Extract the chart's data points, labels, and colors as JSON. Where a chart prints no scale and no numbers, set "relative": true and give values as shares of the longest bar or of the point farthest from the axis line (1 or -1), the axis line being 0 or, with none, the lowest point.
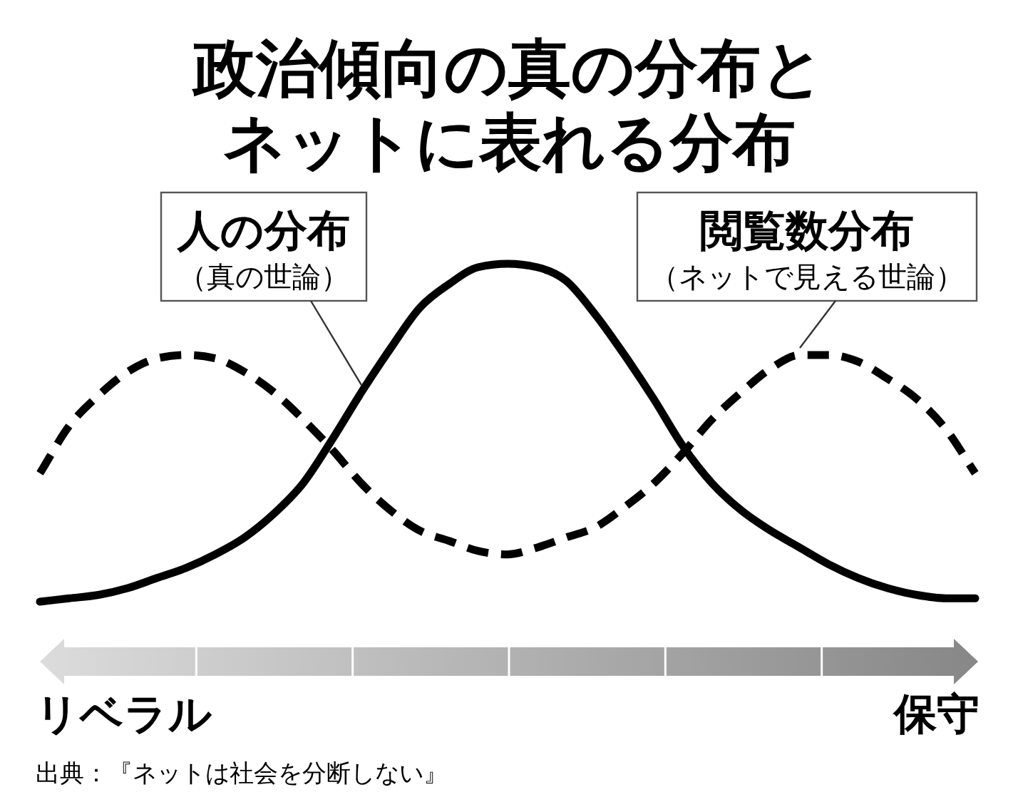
{
  "chart_data": {
    "type": "line",
    "relative": true,
    "title": "政治傾向の真の分布とネットに表れる分布",
    "categories": [
      null,
      null,
      null,
      null,
      null,
      null,
      null,
      null,
      null,
      null,
      null,
      null,
      null,
      null,
      null,
      null,
      null,
      null,
      null,
      null,
      null,
      null,
      null,
      null,
      null,
      null,
      null,
      null,
      null,
      null,
      null,
      null,
      null
    ],
    "series": [
      {
        "name": "人の分布（真の世論）",
        "color": "#000000",
        "line_style": "solid",
        "values": [
          0,
          0.01,
          0.02,
          0.04,
          0.07,
          0.1,
          0.14,
          0.19,
          0.26,
          0.35,
          0.48,
          0.62,
          0.75,
          0.87,
          0.94,
          0.99,
          1,
          0.99,
          0.95,
          0.85,
          0.73,
          0.6,
          0.46,
          0.35,
          0.27,
          0.21,
          0.16,
          0.11,
          0.07,
          0.04,
          0.02,
          0.01,
          0.01
        ]
      },
      {
        "name": "閲覧数分布（ネットで見える世論）",
        "color": "#000000",
        "line_style": "dashed",
        "values": [
          0.38,
          0.52,
          0.61,
          0.68,
          0.72,
          0.73,
          0.72,
          0.68,
          0.62,
          0.54,
          0.45,
          0.35,
          0.27,
          0.21,
          0.18,
          0.15,
          0.14,
          0.16,
          0.19,
          0.22,
          0.28,
          0.35,
          0.44,
          0.54,
          0.62,
          0.69,
          0.73,
          0.73,
          0.71,
          0.66,
          0.6,
          0.51,
          0.38
        ]
      }
    ],
    "annotations": [
      "リベラル",
      "保守",
      "出典：『ネットは社会を分断しない』"
    ]
  }
}
